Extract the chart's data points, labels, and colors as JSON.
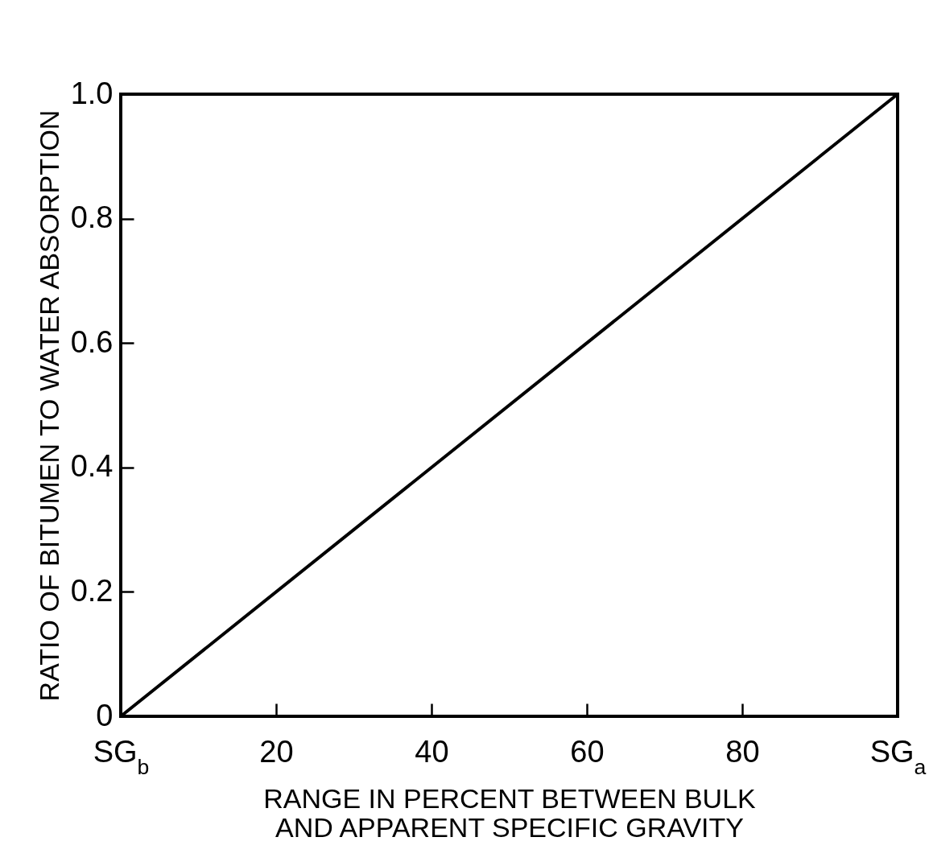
{
  "chart_data": {
    "type": "line",
    "xlabel": "RANGE IN PERCENT BETWEEN BULK AND APPARENT SPECIFIC GRAVITY",
    "ylabel": "RATIO OF BITUMEN TO WATER ABSORPTION",
    "x": [
      0,
      100
    ],
    "series": [
      {
        "color": "#000000",
        "values": [
          0,
          1
        ]
      }
    ],
    "xlim": [
      0,
      100
    ],
    "ylim": [
      0,
      1
    ],
    "xticks": [
      {
        "value": 0,
        "label": "SG$_{b}$"
      },
      20,
      40,
      60,
      80,
      {
        "value": 100,
        "label": "SG$_{a}$"
      }
    ],
    "yticks": [
      0,
      0.2,
      0.4,
      0.6,
      0.8,
      {
        "value": 1,
        "label": "1.0"
      }
    ],
    "grid": false,
    "legend": false,
    "marker": "none",
    "line_style": "solid"
  }
}
